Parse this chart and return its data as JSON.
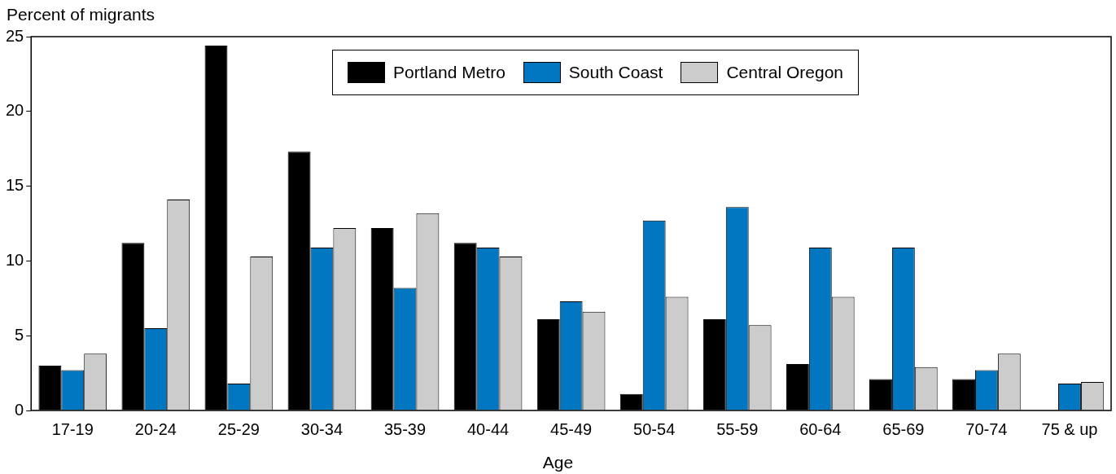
{
  "chart_data": {
    "type": "bar",
    "ylabel": "Percent of migrants",
    "xlabel": "Age",
    "categories": [
      "17-19",
      "20-24",
      "25-29",
      "30-34",
      "35-39",
      "40-44",
      "45-49",
      "50-54",
      "55-59",
      "60-64",
      "65-69",
      "70-74",
      "75 & up"
    ],
    "series": [
      {
        "name": "Portland Metro",
        "color": "#000000",
        "values": [
          3.0,
          11.2,
          24.4,
          17.3,
          12.2,
          11.2,
          6.1,
          1.1,
          6.1,
          3.1,
          2.1,
          2.1,
          0
        ]
      },
      {
        "name": "South Coast",
        "color": "#0077c0",
        "values": [
          2.7,
          5.5,
          1.8,
          10.9,
          8.2,
          10.9,
          7.3,
          12.7,
          13.6,
          10.9,
          10.9,
          2.7,
          1.8
        ]
      },
      {
        "name": "Central Oregon",
        "color": "#cccccc",
        "values": [
          3.8,
          14.1,
          10.3,
          12.2,
          13.2,
          10.3,
          6.6,
          7.6,
          5.7,
          7.6,
          2.9,
          3.8,
          1.9
        ]
      }
    ],
    "ylim": [
      0,
      25
    ],
    "yticks": [
      0,
      5,
      10,
      15,
      20,
      25
    ],
    "grid": false,
    "legend": "top"
  }
}
